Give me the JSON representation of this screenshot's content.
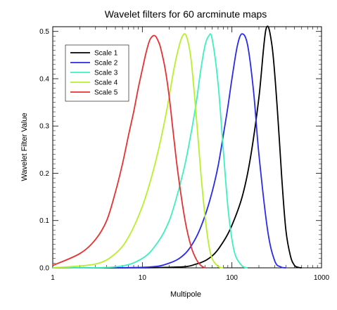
{
  "chart_data": {
    "type": "line",
    "title": "Wavelet filters for 60 arcminute maps",
    "xlabel": "Multipole",
    "ylabel": "Wavelet Filter Value",
    "xscale": "log",
    "xlim": [
      1,
      1000
    ],
    "ylim": [
      0,
      0.51
    ],
    "xticks": [
      1,
      10,
      100,
      1000
    ],
    "xtick_labels": [
      "1",
      "10",
      "100",
      "1000"
    ],
    "yticks": [
      0.0,
      0.1,
      0.2,
      0.3,
      0.4,
      0.5
    ],
    "ytick_labels": [
      "0.0",
      "0.1",
      "0.2",
      "0.3",
      "0.4",
      "0.5"
    ],
    "legend": "top-left",
    "series": [
      {
        "name": "Scale 1",
        "color": "#000000",
        "x": [
          1,
          20,
          40,
          60,
          80,
          100,
          130,
          160,
          200,
          240,
          280,
          320,
          360,
          400,
          450,
          500,
          550,
          600
        ],
        "y": [
          0,
          0.001,
          0.008,
          0.025,
          0.055,
          0.09,
          0.15,
          0.23,
          0.36,
          0.505,
          0.47,
          0.34,
          0.19,
          0.08,
          0.025,
          0.005,
          0.001,
          0
        ]
      },
      {
        "name": "Scale 2",
        "color": "#2a2ae8",
        "x": [
          1,
          10,
          20,
          30,
          40,
          50,
          60,
          70,
          80,
          90,
          100,
          115,
          130,
          150,
          175,
          200,
          250,
          300,
          350,
          400
        ],
        "y": [
          0,
          0.001,
          0.01,
          0.03,
          0.065,
          0.11,
          0.16,
          0.215,
          0.28,
          0.34,
          0.4,
          0.47,
          0.495,
          0.47,
          0.37,
          0.24,
          0.08,
          0.015,
          0.002,
          0
        ]
      },
      {
        "name": "Scale 3",
        "color": "#3cf0c0",
        "x": [
          1,
          5,
          10,
          15,
          20,
          25,
          30,
          35,
          40,
          45,
          50,
          55,
          60,
          70,
          80,
          90,
          100,
          110,
          130,
          150
        ],
        "y": [
          0,
          0.002,
          0.02,
          0.055,
          0.1,
          0.16,
          0.22,
          0.285,
          0.35,
          0.42,
          0.47,
          0.49,
          0.485,
          0.39,
          0.25,
          0.13,
          0.06,
          0.025,
          0.004,
          0
        ]
      },
      {
        "name": "Scale 4",
        "color": "#b8f02a",
        "x": [
          1,
          3,
          5,
          7,
          10,
          13,
          16,
          19,
          22,
          25,
          28,
          31,
          35,
          40,
          45,
          50,
          55,
          60,
          70,
          80
        ],
        "y": [
          0,
          0.008,
          0.03,
          0.065,
          0.13,
          0.2,
          0.27,
          0.34,
          0.41,
          0.46,
          0.49,
          0.49,
          0.44,
          0.32,
          0.2,
          0.11,
          0.05,
          0.02,
          0.003,
          0
        ]
      },
      {
        "name": "Scale 5",
        "color": "#e83030",
        "x": [
          1,
          2,
          3,
          4,
          5,
          6,
          7,
          8,
          9,
          10,
          11,
          12,
          13,
          14,
          15,
          16,
          18,
          20,
          22,
          25,
          30,
          35,
          40,
          45,
          50
        ],
        "y": [
          0.005,
          0.03,
          0.06,
          0.1,
          0.16,
          0.22,
          0.28,
          0.33,
          0.38,
          0.42,
          0.455,
          0.48,
          0.49,
          0.49,
          0.48,
          0.465,
          0.42,
          0.36,
          0.29,
          0.2,
          0.1,
          0.045,
          0.018,
          0.005,
          0
        ]
      }
    ]
  }
}
